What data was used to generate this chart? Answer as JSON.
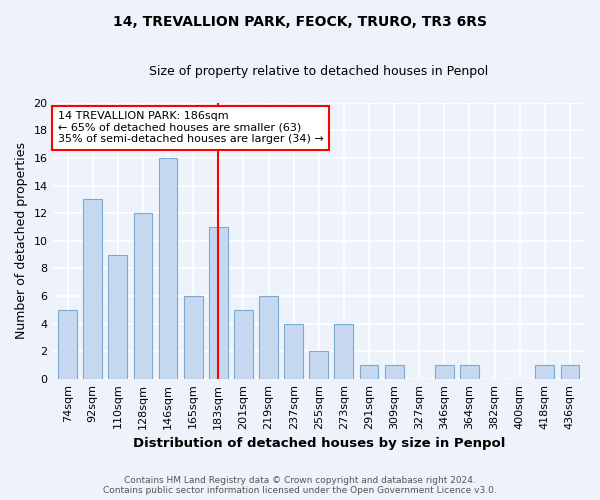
{
  "title1": "14, TREVALLION PARK, FEOCK, TRURO, TR3 6RS",
  "title2": "Size of property relative to detached houses in Penpol",
  "xlabel": "Distribution of detached houses by size in Penpol",
  "ylabel": "Number of detached properties",
  "categories": [
    "74sqm",
    "92sqm",
    "110sqm",
    "128sqm",
    "146sqm",
    "165sqm",
    "183sqm",
    "201sqm",
    "219sqm",
    "237sqm",
    "255sqm",
    "273sqm",
    "291sqm",
    "309sqm",
    "327sqm",
    "346sqm",
    "364sqm",
    "382sqm",
    "400sqm",
    "418sqm",
    "436sqm"
  ],
  "values": [
    5,
    13,
    9,
    12,
    16,
    6,
    11,
    5,
    6,
    4,
    2,
    4,
    1,
    1,
    0,
    1,
    1,
    0,
    0,
    1,
    1
  ],
  "bar_color": "#c5d8f0",
  "bar_edge_color": "#7aaad0",
  "vline_x_index": 6,
  "vline_color": "red",
  "annotation_text": "14 TREVALLION PARK: 186sqm\n← 65% of detached houses are smaller (63)\n35% of semi-detached houses are larger (34) →",
  "annotation_box_color": "white",
  "annotation_box_edge_color": "red",
  "ylim": [
    0,
    20
  ],
  "yticks": [
    0,
    2,
    4,
    6,
    8,
    10,
    12,
    14,
    16,
    18,
    20
  ],
  "bg_color": "#eef2fa",
  "grid_color": "white",
  "footer": "Contains HM Land Registry data © Crown copyright and database right 2024.\nContains public sector information licensed under the Open Government Licence v3.0."
}
